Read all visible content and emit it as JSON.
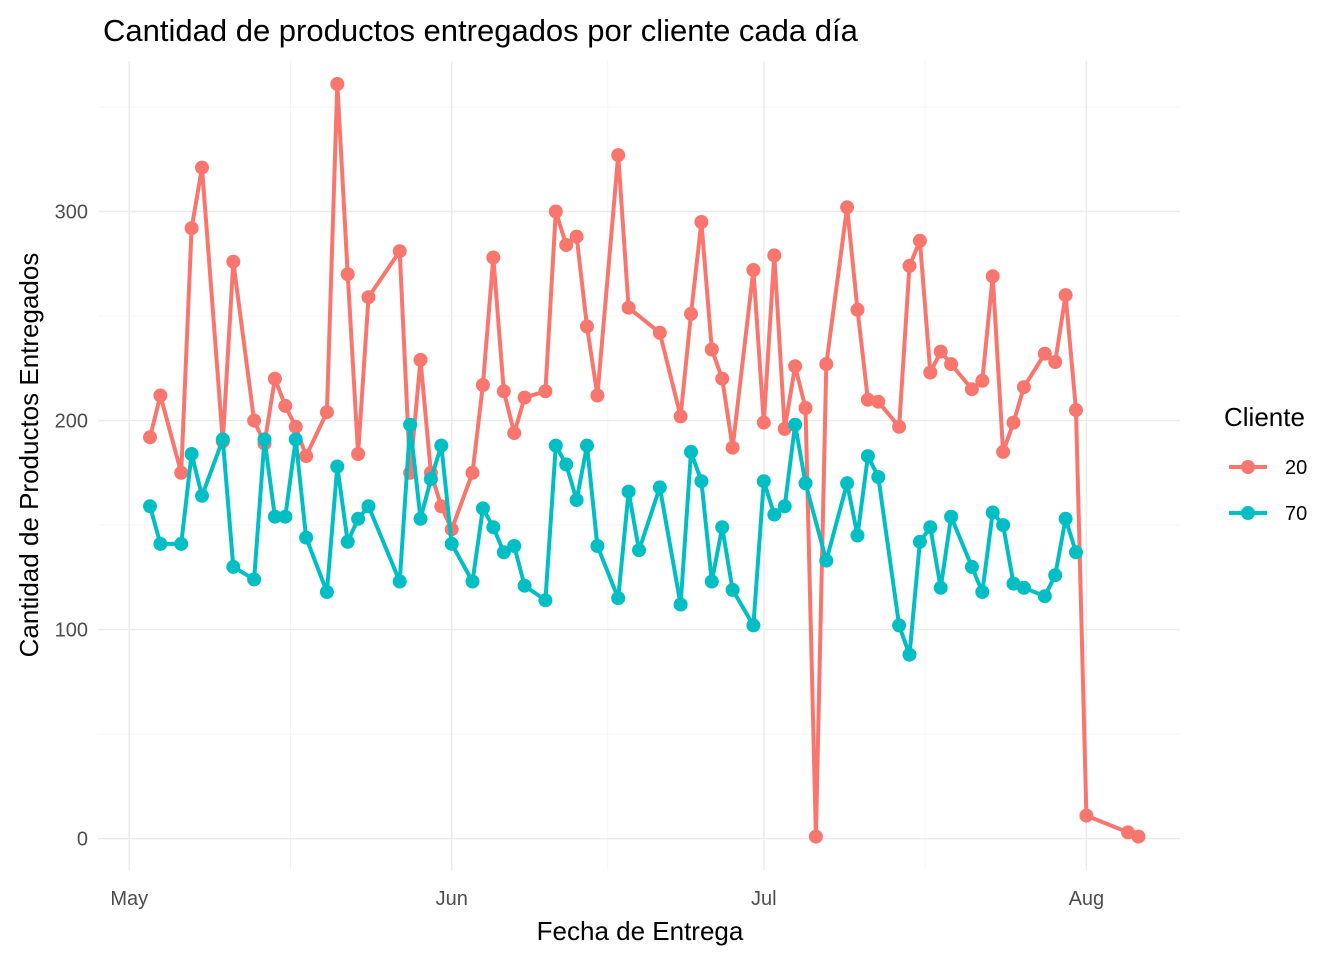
{
  "chart_data": {
    "type": "line",
    "title": "Cantidad de productos entregados por cliente cada día",
    "xlabel": "Fecha de Entrega",
    "ylabel": "Cantidad de Productos Entregados",
    "x_ticks": [
      {
        "date": "2024-05-01",
        "label": "May"
      },
      {
        "date": "2024-06-01",
        "label": "Jun"
      },
      {
        "date": "2024-07-01",
        "label": "Jul"
      },
      {
        "date": "2024-08-01",
        "label": "Aug"
      }
    ],
    "y_ticks": [
      0,
      100,
      200,
      300
    ],
    "xlim": [
      "2024-04-28",
      "2024-08-10"
    ],
    "ylim": [
      -15,
      372
    ],
    "grid": true,
    "legend": {
      "title": "Cliente",
      "position": "right"
    },
    "series": [
      {
        "name": "20",
        "color": "#F8766D",
        "points": [
          [
            "2024-05-03",
            192
          ],
          [
            "2024-05-04",
            212
          ],
          [
            "2024-05-06",
            175
          ],
          [
            "2024-05-07",
            292
          ],
          [
            "2024-05-08",
            321
          ],
          [
            "2024-05-10",
            190
          ],
          [
            "2024-05-11",
            276
          ],
          [
            "2024-05-13",
            200
          ],
          [
            "2024-05-14",
            189
          ],
          [
            "2024-05-15",
            220
          ],
          [
            "2024-05-16",
            207
          ],
          [
            "2024-05-17",
            197
          ],
          [
            "2024-05-18",
            183
          ],
          [
            "2024-05-20",
            204
          ],
          [
            "2024-05-21",
            361
          ],
          [
            "2024-05-22",
            270
          ],
          [
            "2024-05-23",
            184
          ],
          [
            "2024-05-24",
            259
          ],
          [
            "2024-05-27",
            281
          ],
          [
            "2024-05-28",
            175
          ],
          [
            "2024-05-29",
            229
          ],
          [
            "2024-05-30",
            175
          ],
          [
            "2024-05-31",
            159
          ],
          [
            "2024-06-01",
            148
          ],
          [
            "2024-06-03",
            175
          ],
          [
            "2024-06-04",
            217
          ],
          [
            "2024-06-05",
            278
          ],
          [
            "2024-06-06",
            214
          ],
          [
            "2024-06-07",
            194
          ],
          [
            "2024-06-08",
            211
          ],
          [
            "2024-06-10",
            214
          ],
          [
            "2024-06-11",
            300
          ],
          [
            "2024-06-12",
            284
          ],
          [
            "2024-06-13",
            288
          ],
          [
            "2024-06-14",
            245
          ],
          [
            "2024-06-15",
            212
          ],
          [
            "2024-06-17",
            327
          ],
          [
            "2024-06-18",
            254
          ],
          [
            "2024-06-21",
            242
          ],
          [
            "2024-06-23",
            202
          ],
          [
            "2024-06-24",
            251
          ],
          [
            "2024-06-25",
            295
          ],
          [
            "2024-06-26",
            234
          ],
          [
            "2024-06-27",
            220
          ],
          [
            "2024-06-28",
            187
          ],
          [
            "2024-06-30",
            272
          ],
          [
            "2024-07-01",
            199
          ],
          [
            "2024-07-02",
            279
          ],
          [
            "2024-07-03",
            196
          ],
          [
            "2024-07-04",
            226
          ],
          [
            "2024-07-05",
            206
          ],
          [
            "2024-07-06",
            1
          ],
          [
            "2024-07-07",
            227
          ],
          [
            "2024-07-09",
            302
          ],
          [
            "2024-07-10",
            253
          ],
          [
            "2024-07-11",
            210
          ],
          [
            "2024-07-12",
            209
          ],
          [
            "2024-07-14",
            197
          ],
          [
            "2024-07-15",
            274
          ],
          [
            "2024-07-16",
            286
          ],
          [
            "2024-07-17",
            223
          ],
          [
            "2024-07-18",
            233
          ],
          [
            "2024-07-19",
            227
          ],
          [
            "2024-07-21",
            215
          ],
          [
            "2024-07-22",
            219
          ],
          [
            "2024-07-23",
            269
          ],
          [
            "2024-07-24",
            185
          ],
          [
            "2024-07-25",
            199
          ],
          [
            "2024-07-26",
            216
          ],
          [
            "2024-07-28",
            232
          ],
          [
            "2024-07-29",
            228
          ],
          [
            "2024-07-30",
            260
          ],
          [
            "2024-07-31",
            205
          ],
          [
            "2024-08-01",
            11
          ],
          [
            "2024-08-05",
            3
          ],
          [
            "2024-08-06",
            1
          ]
        ]
      },
      {
        "name": "70",
        "color": "#00BFC4",
        "points": [
          [
            "2024-05-03",
            159
          ],
          [
            "2024-05-04",
            141
          ],
          [
            "2024-05-06",
            141
          ],
          [
            "2024-05-07",
            184
          ],
          [
            "2024-05-08",
            164
          ],
          [
            "2024-05-10",
            191
          ],
          [
            "2024-05-11",
            130
          ],
          [
            "2024-05-13",
            124
          ],
          [
            "2024-05-14",
            191
          ],
          [
            "2024-05-15",
            154
          ],
          [
            "2024-05-16",
            154
          ],
          [
            "2024-05-17",
            191
          ],
          [
            "2024-05-18",
            144
          ],
          [
            "2024-05-20",
            118
          ],
          [
            "2024-05-21",
            178
          ],
          [
            "2024-05-22",
            142
          ],
          [
            "2024-05-23",
            153
          ],
          [
            "2024-05-24",
            159
          ],
          [
            "2024-05-27",
            123
          ],
          [
            "2024-05-28",
            198
          ],
          [
            "2024-05-29",
            153
          ],
          [
            "2024-05-30",
            172
          ],
          [
            "2024-05-31",
            188
          ],
          [
            "2024-06-01",
            141
          ],
          [
            "2024-06-03",
            123
          ],
          [
            "2024-06-04",
            158
          ],
          [
            "2024-06-05",
            149
          ],
          [
            "2024-06-06",
            137
          ],
          [
            "2024-06-07",
            140
          ],
          [
            "2024-06-08",
            121
          ],
          [
            "2024-06-10",
            114
          ],
          [
            "2024-06-11",
            188
          ],
          [
            "2024-06-12",
            179
          ],
          [
            "2024-06-13",
            162
          ],
          [
            "2024-06-14",
            188
          ],
          [
            "2024-06-15",
            140
          ],
          [
            "2024-06-17",
            115
          ],
          [
            "2024-06-18",
            166
          ],
          [
            "2024-06-19",
            138
          ],
          [
            "2024-06-21",
            168
          ],
          [
            "2024-06-23",
            112
          ],
          [
            "2024-06-24",
            185
          ],
          [
            "2024-06-25",
            171
          ],
          [
            "2024-06-26",
            123
          ],
          [
            "2024-06-27",
            149
          ],
          [
            "2024-06-28",
            119
          ],
          [
            "2024-06-30",
            102
          ],
          [
            "2024-07-01",
            171
          ],
          [
            "2024-07-02",
            155
          ],
          [
            "2024-07-03",
            159
          ],
          [
            "2024-07-04",
            198
          ],
          [
            "2024-07-05",
            170
          ],
          [
            "2024-07-07",
            133
          ],
          [
            "2024-07-09",
            170
          ],
          [
            "2024-07-10",
            145
          ],
          [
            "2024-07-11",
            183
          ],
          [
            "2024-07-12",
            173
          ],
          [
            "2024-07-14",
            102
          ],
          [
            "2024-07-15",
            88
          ],
          [
            "2024-07-16",
            142
          ],
          [
            "2024-07-17",
            149
          ],
          [
            "2024-07-18",
            120
          ],
          [
            "2024-07-19",
            154
          ],
          [
            "2024-07-21",
            130
          ],
          [
            "2024-07-22",
            118
          ],
          [
            "2024-07-23",
            156
          ],
          [
            "2024-07-24",
            150
          ],
          [
            "2024-07-25",
            122
          ],
          [
            "2024-07-26",
            120
          ],
          [
            "2024-07-28",
            116
          ],
          [
            "2024-07-29",
            126
          ],
          [
            "2024-07-30",
            153
          ],
          [
            "2024-07-31",
            137
          ]
        ]
      }
    ]
  }
}
